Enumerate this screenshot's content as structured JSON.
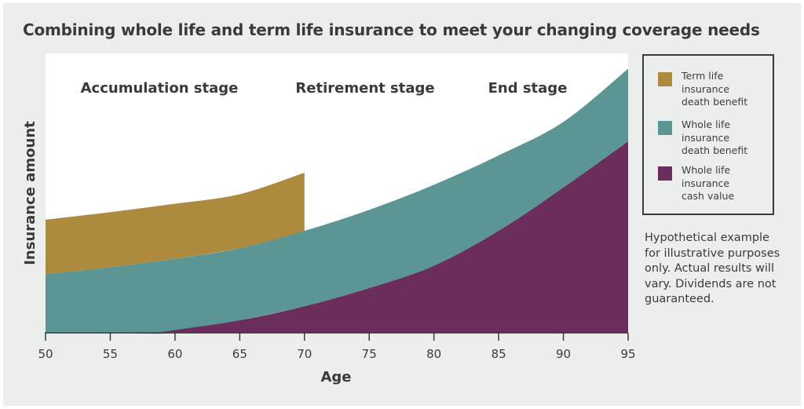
{
  "chart_data": {
    "type": "area",
    "title": "Combining whole life and term life insurance to meet your changing coverage needs",
    "xlabel": "Age",
    "ylabel": "Insurance amount",
    "xlim": [
      50,
      95
    ],
    "ylim": [
      0,
      100
    ],
    "x_ticks": [
      "50",
      "55",
      "60",
      "65",
      "70",
      "75",
      "80",
      "85",
      "90",
      "95"
    ],
    "grid": false,
    "legend_position": "right",
    "stages": [
      "Accumulation stage",
      "Retirement stage",
      "End stage"
    ],
    "series": [
      {
        "name": "Term life insurance death benefit",
        "color": "#ae8a3e",
        "x": [
          50,
          55,
          60,
          65,
          70
        ],
        "lower": [
          21,
          23.5,
          26.5,
          30.3,
          36
        ],
        "upper": [
          40.5,
          43.2,
          46.2,
          49.6,
          57.3
        ]
      },
      {
        "name": "Whole life insurance death benefit",
        "color": "#5b9594",
        "x": [
          50,
          55,
          60,
          65,
          70,
          75,
          80,
          85,
          90,
          95
        ],
        "lower": [
          0,
          0,
          0,
          4.5,
          9.5,
          16,
          24,
          36.5,
          52,
          68.5
        ],
        "upper": [
          21,
          23.5,
          26.5,
          30.3,
          36.5,
          44,
          53,
          63.5,
          75.5,
          94.5
        ]
      },
      {
        "name": "Whole life insurance cash value",
        "color": "#6a2d5c",
        "x": [
          58.5,
          60,
          65,
          70,
          75,
          80,
          85,
          90,
          95
        ],
        "lower": [
          0,
          0,
          0,
          0,
          0,
          0,
          0,
          0,
          0
        ],
        "upper": [
          0,
          1,
          4.5,
          9.5,
          16,
          24,
          36.5,
          52,
          68.5
        ]
      }
    ]
  },
  "legend": {
    "items": [
      {
        "lines": [
          "Term life",
          "insurance",
          "death benefit"
        ],
        "color": "#ae8a3e"
      },
      {
        "lines": [
          "Whole life",
          "insurance",
          "death benefit"
        ],
        "color": "#5b9594"
      },
      {
        "lines": [
          "Whole life",
          "insurance",
          "cash value"
        ],
        "color": "#6a2d5c"
      }
    ]
  },
  "note": "Hypothetical example for illustrative purposes only. Actual results will vary. Dividends are not guaranteed."
}
